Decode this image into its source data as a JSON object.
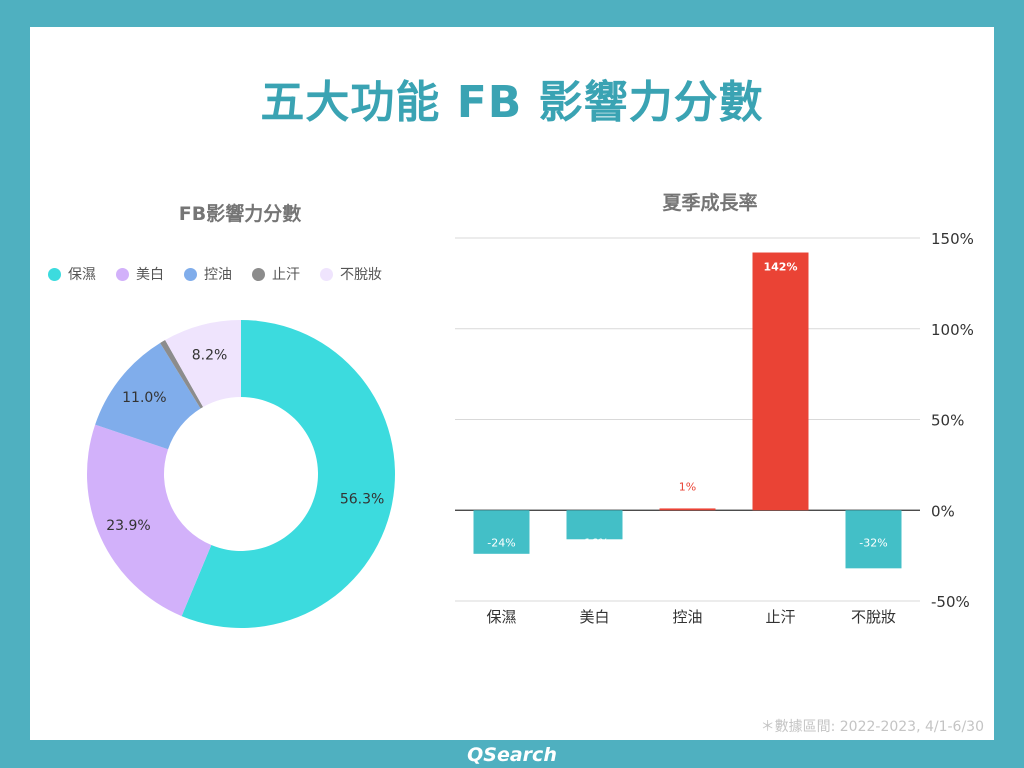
{
  "page": {
    "title": "五大功能 FB 影響力分數",
    "footnote": "＊數據區間: 2022-2023, 4/1-6/30",
    "brand": "QSearch",
    "colors": {
      "background": "#4fb0c0",
      "title": "#3aa3b3"
    }
  },
  "chart_data": [
    {
      "type": "pie",
      "title": "FB影響力分數",
      "legend_position": "top",
      "categories": [
        "保濕",
        "美白",
        "控油",
        "止汗",
        "不脫妝"
      ],
      "values": [
        56.3,
        23.9,
        11.0,
        0.6,
        8.2
      ],
      "labels": [
        "56.3%",
        "23.9%",
        "11.0%",
        "",
        "8.2%"
      ],
      "colors": [
        "#3cdbde",
        "#d2b1fa",
        "#80adeb",
        "#8c8c8c",
        "#efe4fd"
      ],
      "donut": true
    },
    {
      "type": "bar",
      "title": "夏季成長率",
      "categories": [
        "保濕",
        "美白",
        "控油",
        "止汗",
        "不脫妝"
      ],
      "values": [
        -24,
        -16,
        1,
        142,
        -32
      ],
      "labels": [
        "-24%",
        "-16%",
        "1%",
        "142%",
        "-32%"
      ],
      "colors": [
        "#43bfc7",
        "#43bfc7",
        "#ea4335",
        "#ea4335",
        "#43bfc7"
      ],
      "ylim": [
        -50,
        150
      ],
      "yticks": [
        "150%",
        "100%",
        "50%",
        "0%",
        "-50%"
      ],
      "ytick_values": [
        150,
        100,
        50,
        0,
        -50
      ],
      "yaxis_side": "right",
      "grid": true
    }
  ]
}
